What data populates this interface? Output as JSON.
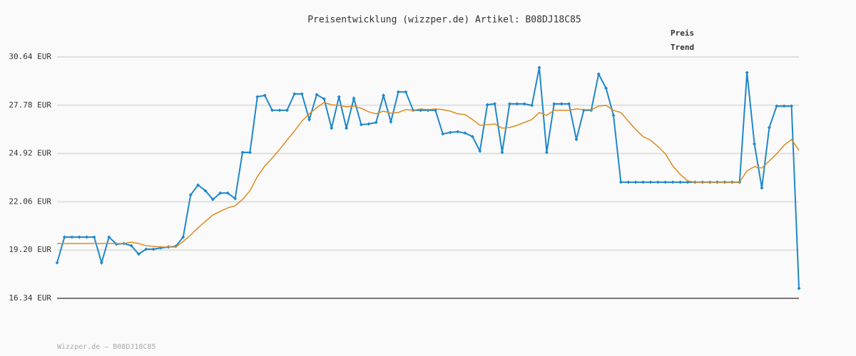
{
  "chart_data": {
    "type": "line",
    "title": "Preisentwicklung (wizzper.de) Artikel: B08DJ18C85",
    "footer": "Wizzper.de – B08DJ18C85",
    "ylim": [
      16.34,
      30.64
    ],
    "yticks": [
      {
        "value": 16.34,
        "label": "16.34 EUR"
      },
      {
        "value": 19.2,
        "label": "19.20 EUR"
      },
      {
        "value": 22.06,
        "label": "22.06 EUR"
      },
      {
        "value": 24.92,
        "label": "24.92 EUR"
      },
      {
        "value": 27.78,
        "label": "27.78 EUR"
      },
      {
        "value": 30.64,
        "label": "30.64 EUR"
      }
    ],
    "grid": true,
    "series": [
      {
        "name": "Preis",
        "color": "#1f88c9",
        "values": [
          18.45,
          19.97,
          19.97,
          19.97,
          19.97,
          19.97,
          18.45,
          19.97,
          19.55,
          19.59,
          19.46,
          18.96,
          19.25,
          19.25,
          19.33,
          19.38,
          19.42,
          19.97,
          22.46,
          23.05,
          22.71,
          22.2,
          22.58,
          22.58,
          22.25,
          24.99,
          24.99,
          28.28,
          28.36,
          27.48,
          27.48,
          27.48,
          28.45,
          28.45,
          26.93,
          28.41,
          28.15,
          26.42,
          28.28,
          26.42,
          28.19,
          26.63,
          26.67,
          26.76,
          28.36,
          26.8,
          28.57,
          28.57,
          27.48,
          27.48,
          27.48,
          27.48,
          26.08,
          26.17,
          26.21,
          26.13,
          25.92,
          25.07,
          27.81,
          27.86,
          24.99,
          27.86,
          27.86,
          27.86,
          27.77,
          30.01,
          24.99,
          27.86,
          27.86,
          27.86,
          25.75,
          27.48,
          27.48,
          29.63,
          28.79,
          27.18,
          23.22,
          23.22,
          23.22,
          23.22,
          23.22,
          23.22,
          23.22,
          23.22,
          23.22,
          23.22,
          23.22,
          23.22,
          23.22,
          23.22,
          23.22,
          23.22,
          23.22,
          29.71,
          25.49,
          22.88,
          26.46,
          27.73,
          27.73,
          27.73,
          16.93
        ]
      },
      {
        "name": "Trend",
        "color": "#e08a1e",
        "values": [
          19.59,
          19.59,
          19.59,
          19.59,
          19.59,
          19.59,
          19.59,
          19.59,
          19.59,
          19.59,
          19.67,
          19.59,
          19.46,
          19.42,
          19.38,
          19.38,
          19.38,
          19.71,
          20.09,
          20.52,
          20.9,
          21.28,
          21.49,
          21.7,
          21.82,
          22.2,
          22.71,
          23.55,
          24.18,
          24.65,
          25.16,
          25.71,
          26.25,
          26.84,
          27.27,
          27.64,
          27.94,
          27.81,
          27.77,
          27.69,
          27.73,
          27.6,
          27.39,
          27.27,
          27.43,
          27.31,
          27.35,
          27.52,
          27.48,
          27.56,
          27.52,
          27.56,
          27.52,
          27.43,
          27.27,
          27.23,
          26.93,
          26.59,
          26.63,
          26.67,
          26.42,
          26.46,
          26.59,
          26.76,
          26.93,
          27.35,
          27.18,
          27.48,
          27.48,
          27.48,
          27.56,
          27.52,
          27.52,
          27.73,
          27.77,
          27.48,
          27.35,
          26.84,
          26.34,
          25.92,
          25.71,
          25.33,
          24.9,
          24.18,
          23.68,
          23.3,
          23.22,
          23.22,
          23.22,
          23.22,
          23.22,
          23.22,
          23.22,
          23.89,
          24.14,
          24.06,
          24.48,
          24.9,
          25.41,
          25.75,
          25.11
        ]
      }
    ]
  }
}
